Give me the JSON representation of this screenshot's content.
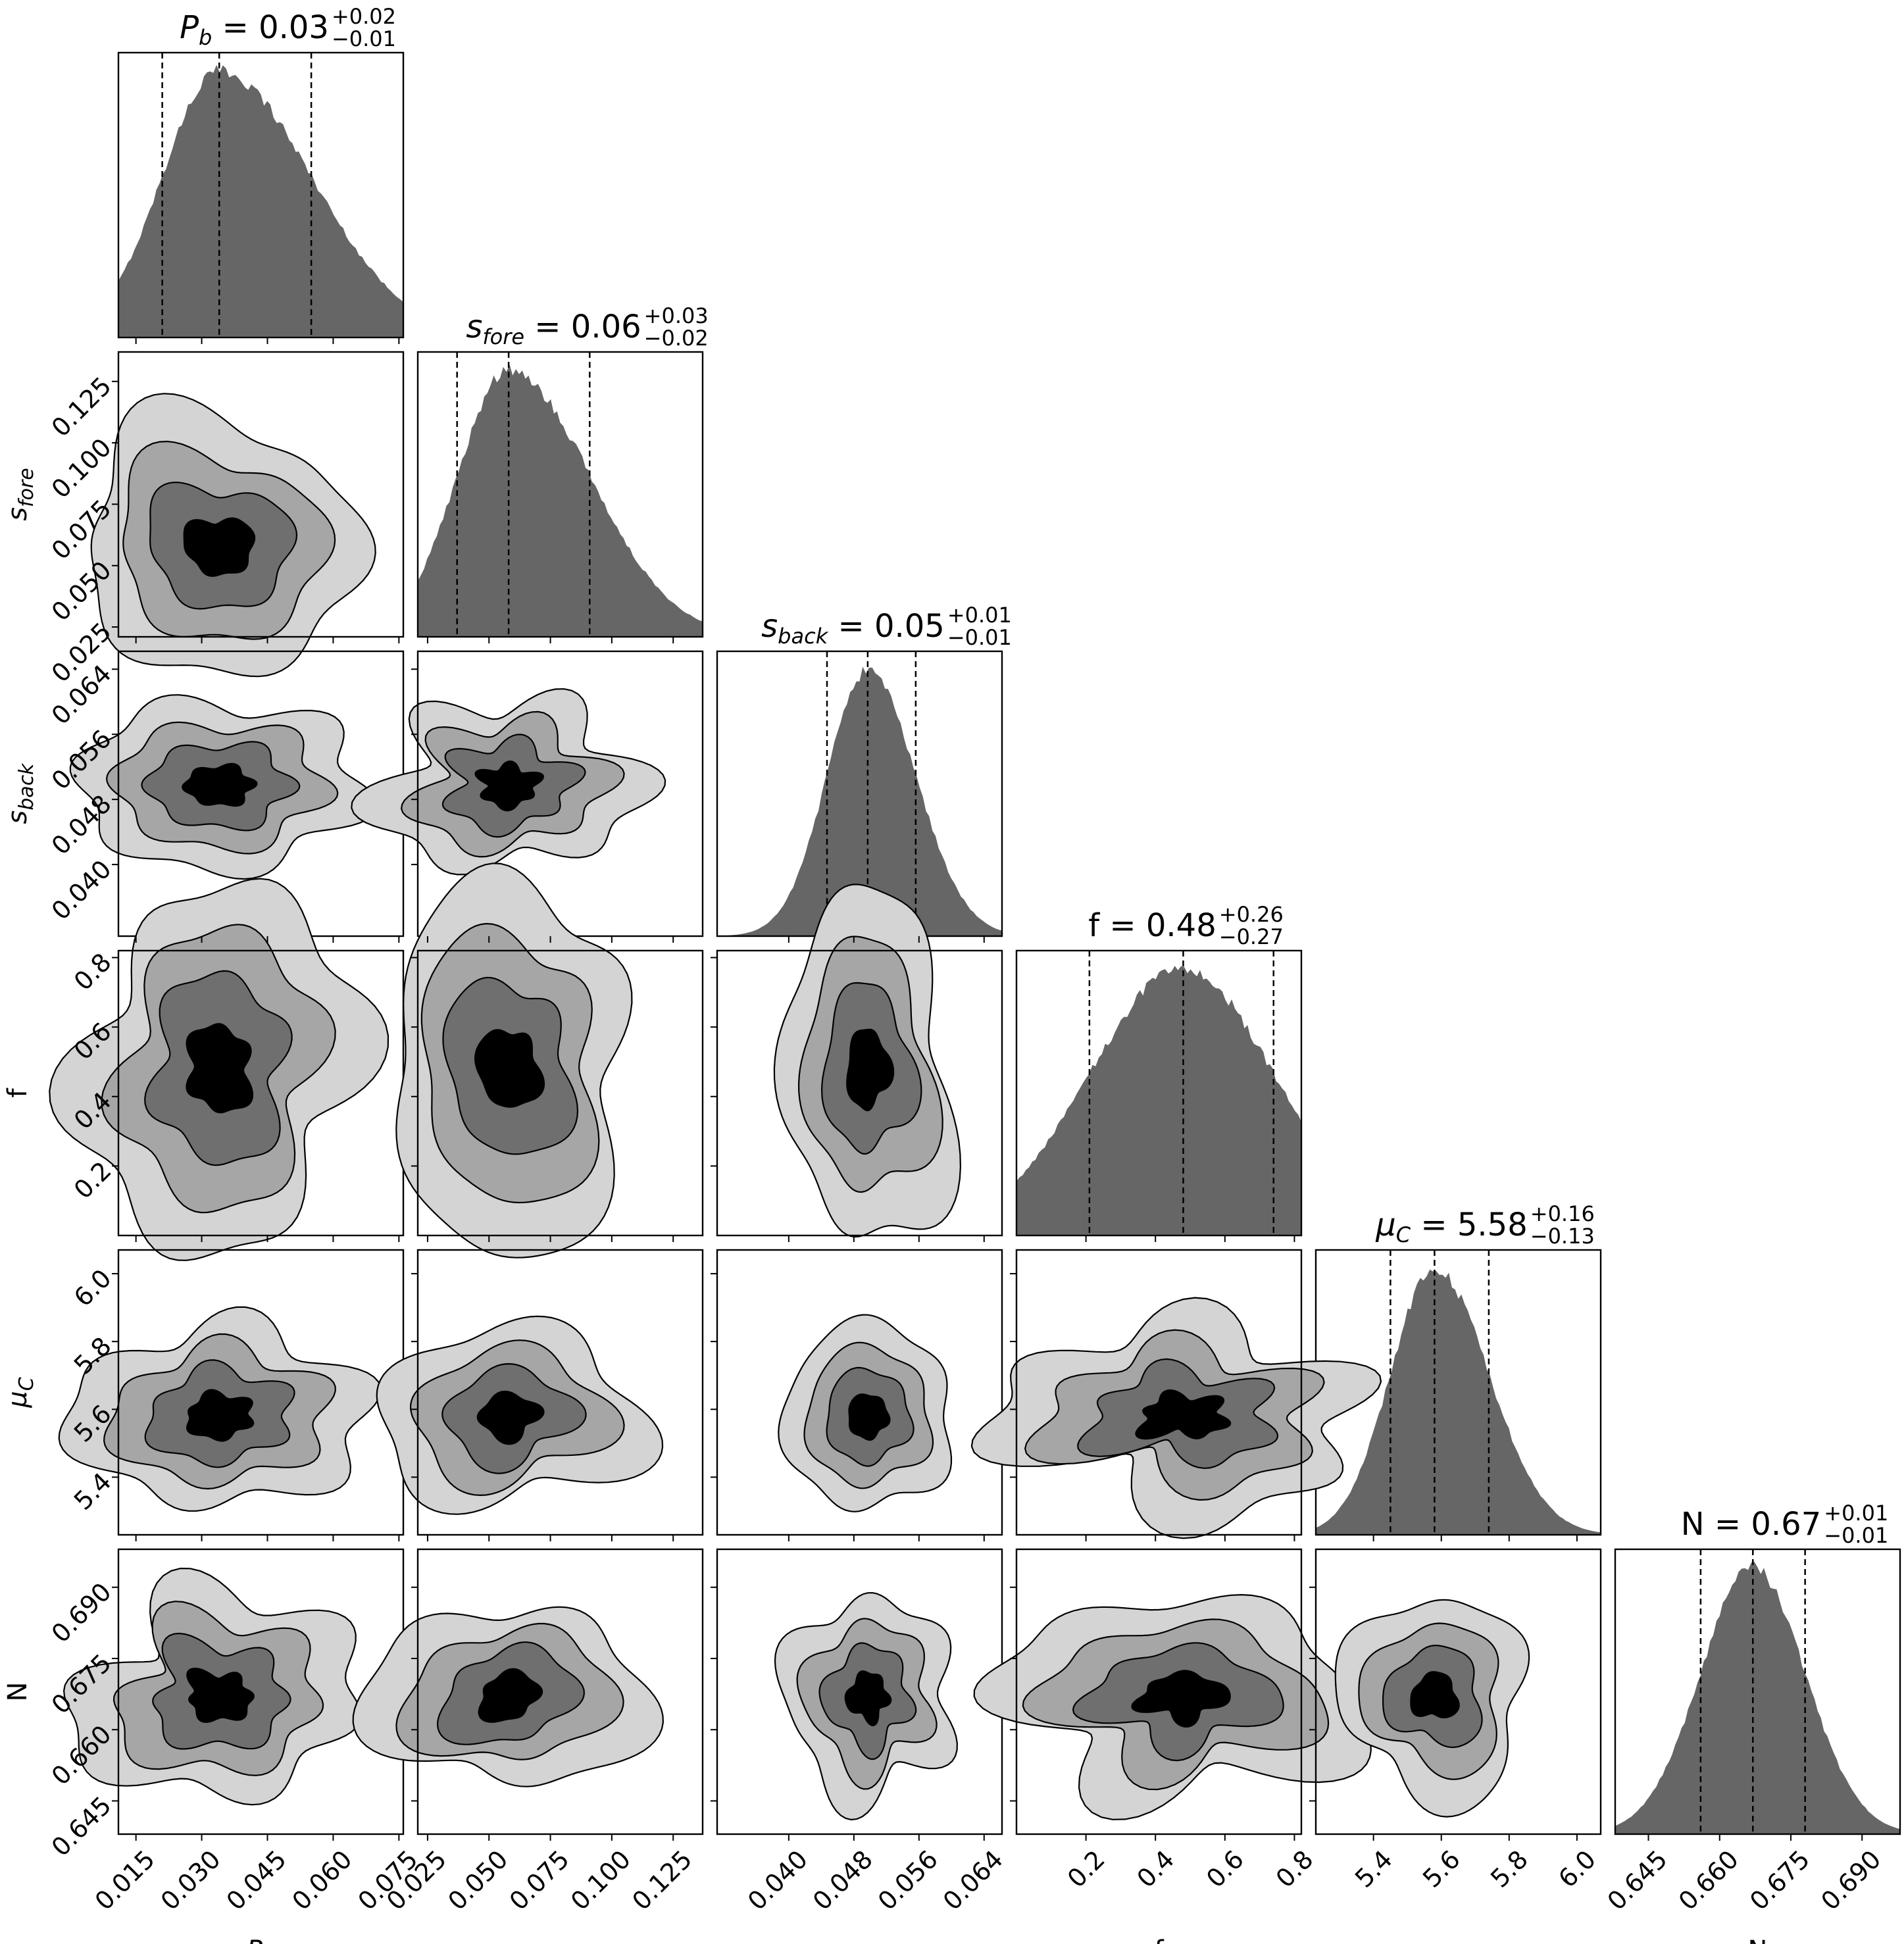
{
  "chart_data": {
    "type": "corner",
    "parameters": [
      {
        "key": "Pb",
        "axis_label": "P_b",
        "median": 0.034,
        "q16": 0.021,
        "q84": 0.055,
        "range": [
          0.011,
          0.076
        ],
        "ticks": [
          0.015,
          0.03,
          0.045,
          0.06,
          0.075
        ],
        "tick_labels": [
          "0.015",
          "0.030",
          "0.045",
          "0.060",
          "0.075"
        ],
        "title": {
          "symbol": "P",
          "sub": "b",
          "value": "0.03",
          "plus": "+0.02",
          "minus": "−0.01"
        }
      },
      {
        "key": "sfore",
        "axis_label": "s_fore",
        "median": 0.058,
        "q16": 0.037,
        "q84": 0.091,
        "range": [
          0.021,
          0.137
        ],
        "ticks": [
          0.025,
          0.05,
          0.075,
          0.1,
          0.125
        ],
        "tick_labels": [
          "0.025",
          "0.050",
          "0.075",
          "0.100",
          "0.125"
        ],
        "title": {
          "symbol": "s",
          "sub": "fore",
          "value": "0.06",
          "plus": "+0.03",
          "minus": "−0.02"
        }
      },
      {
        "key": "sback",
        "axis_label": "s_back",
        "median": 0.0497,
        "q16": 0.0447,
        "q84": 0.0556,
        "range": [
          0.0312,
          0.0662
        ],
        "ticks": [
          0.04,
          0.048,
          0.056,
          0.064
        ],
        "tick_labels": [
          "0.040",
          "0.048",
          "0.056",
          "0.064"
        ],
        "title": {
          "symbol": "s",
          "sub": "back",
          "value": "0.05",
          "plus": "+0.01",
          "minus": "−0.01"
        }
      },
      {
        "key": "f",
        "axis_label": "f",
        "median": 0.48,
        "q16": 0.21,
        "q84": 0.74,
        "range": [
          0.0,
          0.82
        ],
        "ticks": [
          0.2,
          0.4,
          0.6,
          0.8
        ],
        "tick_labels": [
          "0.2",
          "0.4",
          "0.6",
          "0.8"
        ],
        "title": {
          "symbol": "f",
          "sub": "",
          "value": "0.48",
          "plus": "+0.26",
          "minus": "−0.27"
        }
      },
      {
        "key": "muC",
        "axis_label": "μ_C",
        "median": 5.58,
        "q16": 5.45,
        "q84": 5.74,
        "range": [
          5.23,
          6.07
        ],
        "ticks": [
          5.4,
          5.6,
          5.8,
          6.0
        ],
        "tick_labels": [
          "5.4",
          "5.6",
          "5.8",
          "6.0"
        ],
        "title": {
          "symbol": "μ",
          "sub": "C",
          "value": "5.58",
          "plus": "+0.16",
          "minus": "−0.13"
        }
      },
      {
        "key": "N",
        "axis_label": "N",
        "median": 0.667,
        "q16": 0.656,
        "q84": 0.678,
        "range": [
          0.638,
          0.698
        ],
        "ticks": [
          0.645,
          0.66,
          0.675,
          0.69
        ],
        "tick_labels": [
          "0.645",
          "0.660",
          "0.675",
          "0.690"
        ],
        "title": {
          "symbol": "N",
          "sub": "",
          "value": "0.67",
          "plus": "+0.01",
          "minus": "−0.01"
        }
      }
    ],
    "marginal_fill": "#666666",
    "contour_fills": [
      "#d4d4d4",
      "#a6a6a6",
      "#6f6f6f",
      "#000000"
    ],
    "hist_line_style": "dashed quantile lines at 16th, 50th, 84th percentiles"
  }
}
